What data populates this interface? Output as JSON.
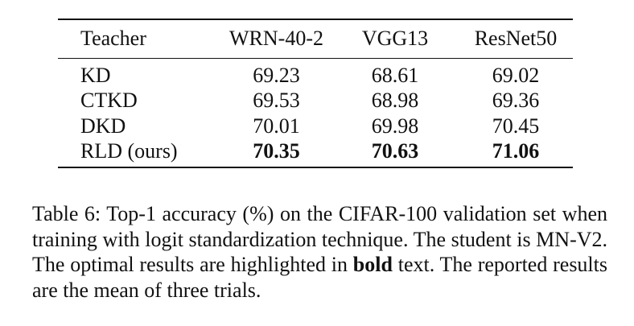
{
  "table": {
    "header": [
      "Teacher",
      "WRN-40-2",
      "VGG13",
      "ResNet50"
    ],
    "rows": [
      [
        "KD",
        "69.23",
        "68.61",
        "69.02"
      ],
      [
        "CTKD",
        "69.53",
        "68.98",
        "69.36"
      ],
      [
        "DKD",
        "70.01",
        "69.98",
        "70.45"
      ],
      [
        "RLD (ours)",
        "70.35",
        "70.63",
        "71.06"
      ]
    ]
  },
  "caption": {
    "before": "Table 6: Top-1 accuracy (%) on the CIFAR-100 validation set when training with logit standardization technique. The student is MN-V2. The optimal results are highlighted in",
    "bold": "bold",
    "after": "text. The reported results are the mean of three trials."
  }
}
